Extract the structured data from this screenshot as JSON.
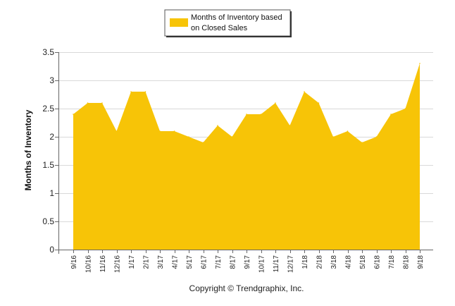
{
  "chart_data": {
    "type": "area",
    "title": "",
    "xlabel": "",
    "ylabel": "Months of Inventory",
    "ylim": [
      0,
      3.5
    ],
    "yticks": [
      0,
      0.5,
      1,
      1.5,
      2,
      2.5,
      3,
      3.5
    ],
    "ytick_labels": [
      "0",
      "0.5",
      "1",
      "1.5",
      "2",
      "2.5",
      "3",
      "3.5"
    ],
    "grid": "horizontal",
    "legend_position": "top-center",
    "categories": [
      "9/16",
      "10/16",
      "11/16",
      "12/16",
      "1/17",
      "2/17",
      "3/17",
      "4/17",
      "5/17",
      "6/17",
      "7/17",
      "8/17",
      "9/17",
      "10/17",
      "11/17",
      "12/17",
      "1/18",
      "2/18",
      "3/18",
      "4/18",
      "5/18",
      "6/18",
      "7/18",
      "8/18",
      "9/18"
    ],
    "series": [
      {
        "name": "Months of Inventory based on Closed Sales",
        "legend_lines": [
          "Months of Inventory based",
          "on Closed Sales"
        ],
        "color": "#F7C407",
        "values": [
          2.4,
          2.6,
          2.6,
          2.1,
          2.8,
          2.8,
          2.1,
          2.1,
          2.0,
          1.9,
          2.2,
          2.0,
          2.4,
          2.4,
          2.6,
          2.2,
          2.8,
          2.6,
          2.0,
          2.1,
          1.9,
          2.0,
          2.4,
          2.5,
          3.3
        ]
      }
    ]
  },
  "footer": {
    "copyright": "Copyright © Trendgraphix, Inc."
  }
}
